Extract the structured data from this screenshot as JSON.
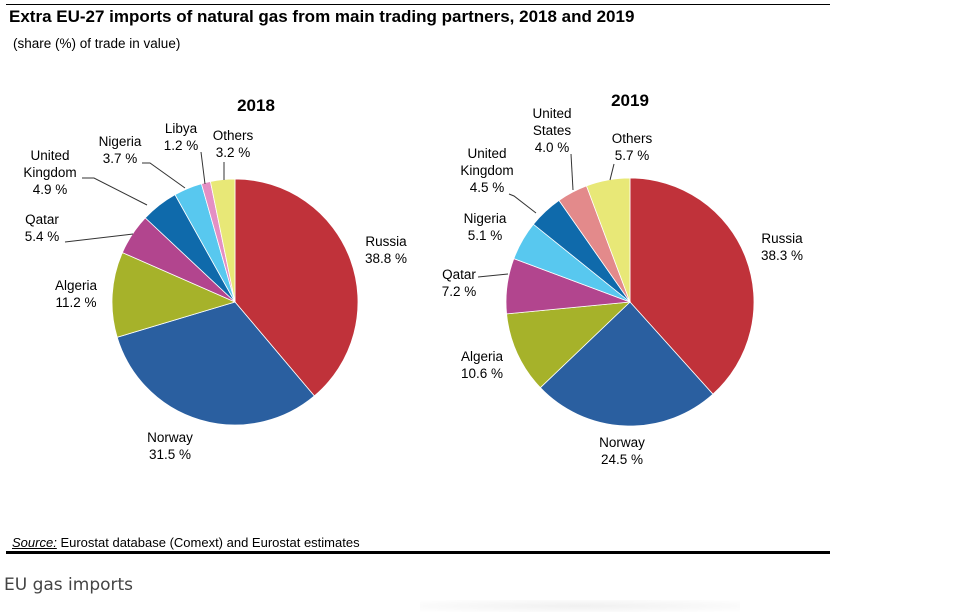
{
  "title": "Extra EU-27 imports of natural gas from main trading partners, 2018 and 2019",
  "subtitle": "(share (%) of trade in value)",
  "source_label": "Source:",
  "source_text": "Eurostat database (Comext) and Eurostat estimates",
  "caption": "EU gas imports",
  "colors": {
    "Russia": "#c0323a",
    "Norway": "#2a5fa0",
    "Algeria": "#a6b22a",
    "Qatar": "#b2458e",
    "United Kingdom": "#0f6aab",
    "Nigeria": "#58c8ef",
    "Libya": "#e48fc4",
    "United States": "#e38a8b",
    "Others": "#e8e877"
  },
  "chart_data": [
    {
      "type": "pie",
      "title": "2018",
      "slices": [
        {
          "label": "Russia",
          "value": 38.8,
          "text": "38.8 %"
        },
        {
          "label": "Norway",
          "value": 31.5,
          "text": "31.5 %"
        },
        {
          "label": "Algeria",
          "value": 11.2,
          "text": "11.2 %"
        },
        {
          "label": "Qatar",
          "value": 5.4,
          "text": "5.4 %"
        },
        {
          "label": "United Kingdom",
          "value": 4.9,
          "text": "4.9 %"
        },
        {
          "label": "Nigeria",
          "value": 3.7,
          "text": "3.7 %"
        },
        {
          "label": "Libya",
          "value": 1.2,
          "text": "1.2 %"
        },
        {
          "label": "Others",
          "value": 3.2,
          "text": "3.2 %"
        }
      ]
    },
    {
      "type": "pie",
      "title": "2019",
      "slices": [
        {
          "label": "Russia",
          "value": 38.3,
          "text": "38.3 %"
        },
        {
          "label": "Norway",
          "value": 24.5,
          "text": "24.5 %"
        },
        {
          "label": "Algeria",
          "value": 10.6,
          "text": "10.6 %"
        },
        {
          "label": "Qatar",
          "value": 7.2,
          "text": "7.2 %"
        },
        {
          "label": "Nigeria",
          "value": 5.1,
          "text": "5.1 %"
        },
        {
          "label": "United Kingdom",
          "value": 4.5,
          "text": "4.5 %"
        },
        {
          "label": "United States",
          "value": 4.0,
          "text": "4.0 %"
        },
        {
          "label": "Others",
          "value": 5.7,
          "text": "5.7 %"
        }
      ]
    }
  ]
}
